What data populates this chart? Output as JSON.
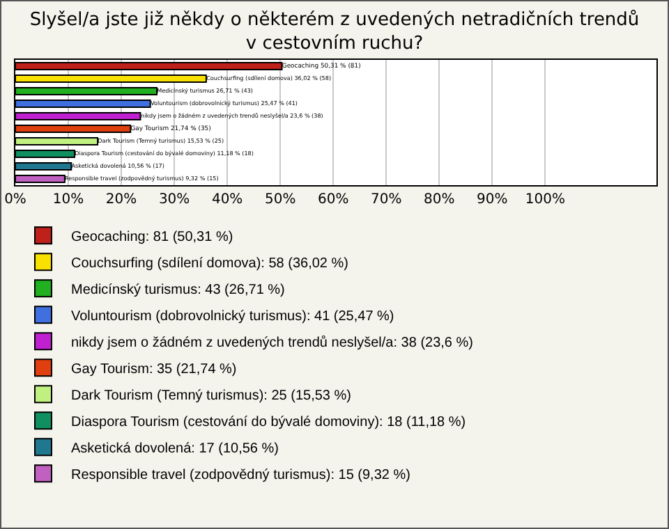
{
  "chart_data": {
    "type": "bar",
    "orientation": "horizontal",
    "title": "Slyšel/a jste již někdy o některém z uvedených netradičních trendů v cestovním ruchu?",
    "categories": [
      null,
      null,
      null,
      null,
      null,
      null,
      null,
      null,
      null,
      null
    ],
    "series": [
      {
        "name": "Geocaching: 81 (50,31 %)",
        "color": "#c0201a",
        "values": [
          50.31,
          null,
          null,
          null,
          null,
          null,
          null,
          null,
          null,
          null
        ],
        "value_labels": [
          "Geocaching 50,31 % (81)",
          null,
          null,
          null,
          null,
          null,
          null,
          null,
          null,
          null
        ]
      },
      {
        "name": "Couchsurfing (sdílení domova): 58 (36,02 %)",
        "color": "#f8e000",
        "values": [
          null,
          36.02,
          null,
          null,
          null,
          null,
          null,
          null,
          null,
          null
        ],
        "value_labels": [
          null,
          "Couchsurfing (sdílení domova) 36,02 % (58)",
          null,
          null,
          null,
          null,
          null,
          null,
          null,
          null
        ]
      },
      {
        "name": "Medicínský turismus: 43 (26,71 %)",
        "color": "#20b020",
        "values": [
          null,
          null,
          26.71,
          null,
          null,
          null,
          null,
          null,
          null,
          null
        ],
        "value_labels": [
          null,
          null,
          "Medicínský turismus 26,71 % (43)",
          null,
          null,
          null,
          null,
          null,
          null,
          null
        ]
      },
      {
        "name": "Voluntourism (dobrovolnický turismus): 41 (25,47 %)",
        "color": "#4070e0",
        "values": [
          null,
          null,
          null,
          25.47,
          null,
          null,
          null,
          null,
          null,
          null
        ],
        "value_labels": [
          null,
          null,
          null,
          "Voluntourism (dobrovolnický turismus) 25,47 % (41)",
          null,
          null,
          null,
          null,
          null,
          null
        ]
      },
      {
        "name": "nikdy jsem o žádném z uvedených trendů neslyšel/a: 38 (23,6 %)",
        "color": "#c020d0",
        "values": [
          null,
          null,
          null,
          null,
          23.6,
          null,
          null,
          null,
          null,
          null
        ],
        "value_labels": [
          null,
          null,
          null,
          null,
          "nikdy jsem o žádném z uvedených trendů neslyšel/a 23,6 % (38)",
          null,
          null,
          null,
          null,
          null
        ]
      },
      {
        "name": "Gay Tourism: 35 (21,74 %)",
        "color": "#e04010",
        "values": [
          null,
          null,
          null,
          null,
          null,
          21.74,
          null,
          null,
          null,
          null
        ],
        "value_labels": [
          null,
          null,
          null,
          null,
          null,
          "Gay Tourism 21,74 % (35)",
          null,
          null,
          null,
          null
        ]
      },
      {
        "name": "Dark Tourism (Temný turismus): 25 (15,53 %)",
        "color": "#c0f080",
        "values": [
          null,
          null,
          null,
          null,
          null,
          null,
          15.53,
          null,
          null,
          null
        ],
        "value_labels": [
          null,
          null,
          null,
          null,
          null,
          null,
          "Dark Tourism (Temný turismus) 15,53 % (25)",
          null,
          null,
          null
        ]
      },
      {
        "name": "Diaspora Tourism (cestování do bývalé domoviny): 18 (11,18 %)",
        "color": "#109060",
        "values": [
          null,
          null,
          null,
          null,
          null,
          null,
          null,
          11.18,
          null,
          null
        ],
        "value_labels": [
          null,
          null,
          null,
          null,
          null,
          null,
          null,
          "Diaspora Tourism (cestování do bývalé domoviny) 11,18 % (18)",
          null,
          null
        ]
      },
      {
        "name": "Asketická dovolená: 17 (10,56 %)",
        "color": "#207890",
        "values": [
          null,
          null,
          null,
          null,
          null,
          null,
          null,
          null,
          10.56,
          null
        ],
        "value_labels": [
          null,
          null,
          null,
          null,
          null,
          null,
          null,
          null,
          "Asketická dovolená 10,56 % (17)",
          null
        ]
      },
      {
        "name": "Responsible travel (zodpovědný turismus): 15 (9,32 %)",
        "color": "#c060c0",
        "values": [
          null,
          null,
          null,
          null,
          null,
          null,
          null,
          null,
          null,
          9.32
        ],
        "value_labels": [
          null,
          null,
          null,
          null,
          null,
          null,
          null,
          null,
          null,
          "Responsible travel (zodpovědný turismus) 9,32 % (15)"
        ]
      }
    ],
    "xlim": [
      0,
      121
    ],
    "xticks": [
      {
        "value": 0,
        "label": "0%"
      },
      {
        "value": 10,
        "label": "10%"
      },
      {
        "value": 20,
        "label": "20%"
      },
      {
        "value": 30,
        "label": "30%"
      },
      {
        "value": 40,
        "label": "40%"
      },
      {
        "value": 50,
        "label": "50%"
      },
      {
        "value": 60,
        "label": "60%"
      },
      {
        "value": 70,
        "label": "70%"
      },
      {
        "value": 80,
        "label": "80%"
      },
      {
        "value": 90,
        "label": "90%"
      },
      {
        "value": 100,
        "label": "100%"
      }
    ],
    "grid": "x",
    "legend": "bottom",
    "tick_labels": "x"
  }
}
